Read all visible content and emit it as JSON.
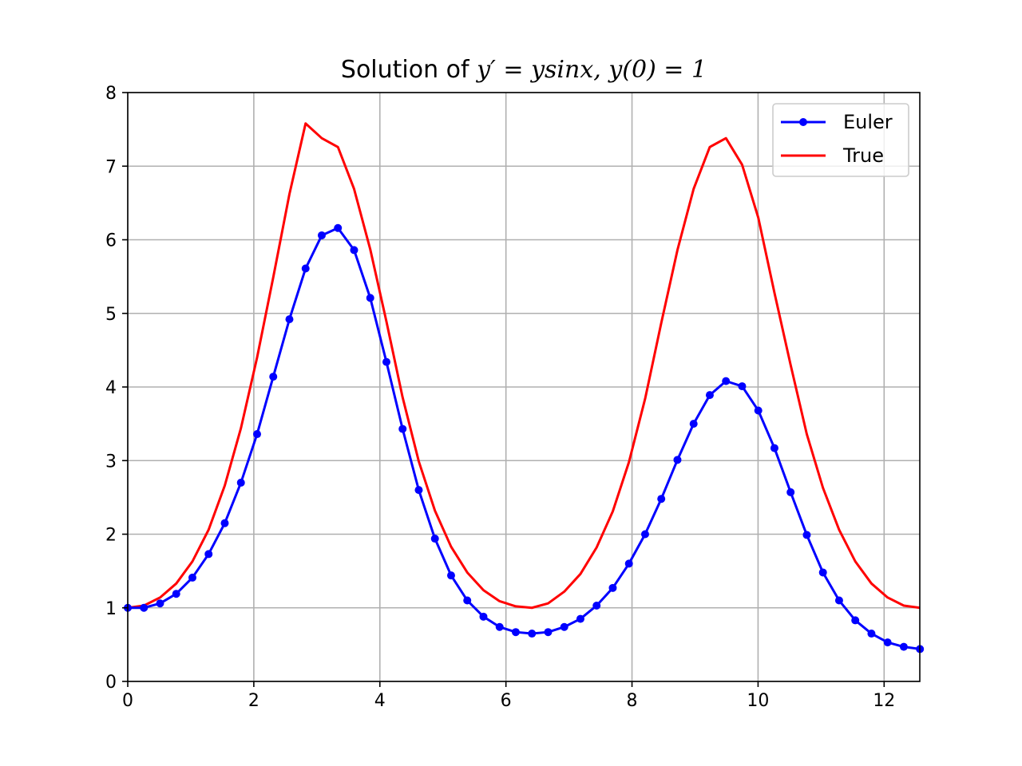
{
  "chart_data": {
    "type": "line",
    "title": {
      "prefix": "Solution of ",
      "equation": "y′ = ysinx, y(0) = 1"
    },
    "xlabel": "",
    "ylabel": "",
    "xlim": [
      0,
      12.566
    ],
    "ylim": [
      0,
      8
    ],
    "x_ticks": [
      0,
      2,
      4,
      6,
      8,
      10,
      12
    ],
    "y_ticks": [
      0,
      1,
      2,
      3,
      4,
      5,
      6,
      7,
      8
    ],
    "grid": true,
    "legend_position": "top-right",
    "series": [
      {
        "name": "Euler",
        "color": "#0000ff",
        "marker": "dot",
        "x": [
          0,
          0.2565,
          0.513,
          0.7695,
          1.026,
          1.2825,
          1.539,
          1.7955,
          2.052,
          2.3085,
          2.565,
          2.8215,
          3.078,
          3.3345,
          3.591,
          3.8475,
          4.104,
          4.3605,
          4.617,
          4.8735,
          5.13,
          5.3865,
          5.643,
          5.8995,
          6.156,
          6.4125,
          6.669,
          6.9255,
          7.182,
          7.4385,
          7.695,
          7.9515,
          8.208,
          8.4645,
          8.721,
          8.9775,
          9.234,
          9.4905,
          9.747,
          10.0035,
          10.26,
          10.5165,
          10.773,
          11.0295,
          11.286,
          11.5425,
          11.799,
          12.0555,
          12.312,
          12.5685
        ],
        "y": [
          1.0,
          1.0,
          1.06,
          1.19,
          1.41,
          1.73,
          2.15,
          2.7,
          3.36,
          4.14,
          4.92,
          5.61,
          6.06,
          6.16,
          5.86,
          5.21,
          4.34,
          3.43,
          2.6,
          1.94,
          1.44,
          1.1,
          0.88,
          0.74,
          0.67,
          0.65,
          0.67,
          0.74,
          0.85,
          1.03,
          1.27,
          1.6,
          2.0,
          2.48,
          3.01,
          3.5,
          3.89,
          4.08,
          4.01,
          3.68,
          3.17,
          2.57,
          1.99,
          1.48,
          1.1,
          0.83,
          0.65,
          0.53,
          0.47,
          0.44
        ]
      },
      {
        "name": "True",
        "color": "#ff0000",
        "marker": "none",
        "x": [
          0,
          0.2565,
          0.513,
          0.7695,
          1.026,
          1.2825,
          1.539,
          1.7955,
          2.052,
          2.3085,
          2.565,
          2.8215,
          3.078,
          3.3345,
          3.591,
          3.8475,
          4.104,
          4.3605,
          4.617,
          4.8735,
          5.13,
          5.3865,
          5.643,
          5.8995,
          6.156,
          6.4125,
          6.669,
          6.9255,
          7.182,
          7.4385,
          7.695,
          7.9515,
          8.208,
          8.4645,
          8.721,
          8.9775,
          9.234,
          9.4905,
          9.747,
          10.0035,
          10.26,
          10.5165,
          10.773,
          11.0295,
          11.286,
          11.5425,
          11.799,
          12.0555,
          12.312,
          12.5685
        ],
        "y": [
          1.0,
          1.03,
          1.14,
          1.33,
          1.63,
          2.06,
          2.66,
          3.44,
          4.4,
          5.49,
          6.62,
          7.58,
          7.38,
          7.26,
          6.69,
          5.87,
          4.89,
          3.86,
          2.99,
          2.32,
          1.83,
          1.48,
          1.24,
          1.09,
          1.02,
          1.0,
          1.06,
          1.22,
          1.46,
          1.82,
          2.31,
          2.98,
          3.84,
          4.87,
          5.86,
          6.69,
          7.26,
          7.38,
          7.02,
          6.3,
          5.28,
          4.3,
          3.36,
          2.63,
          2.06,
          1.63,
          1.33,
          1.14,
          1.03,
          1.0
        ]
      }
    ]
  }
}
